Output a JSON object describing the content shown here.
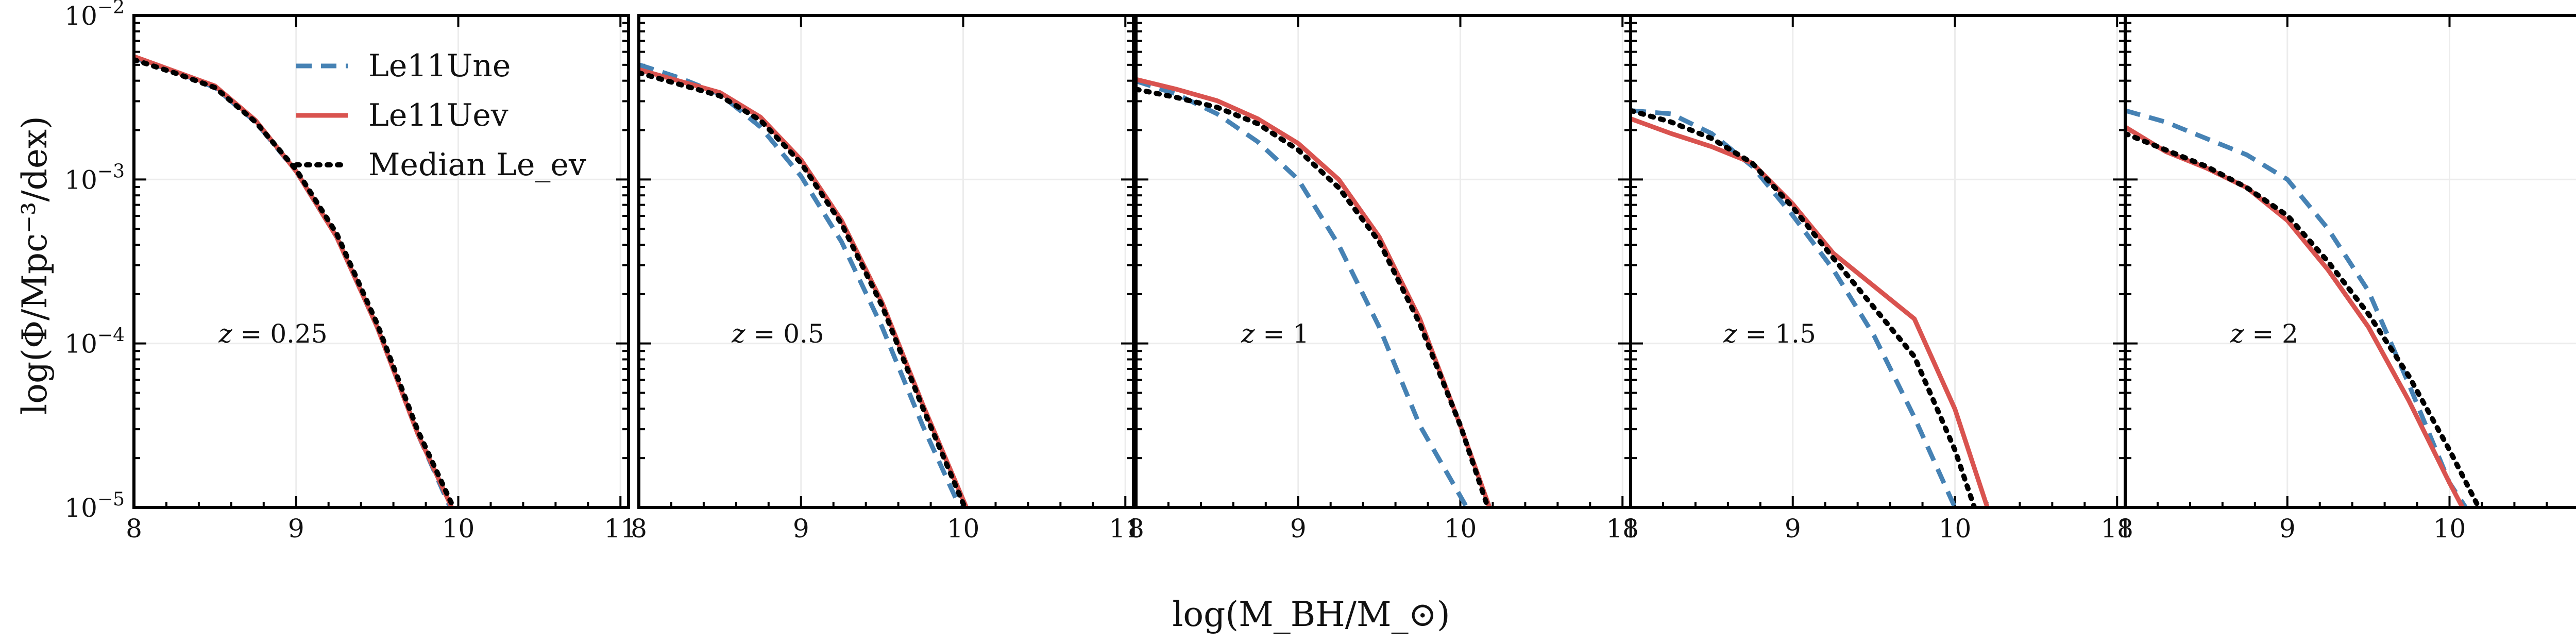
{
  "chart_data": {
    "type": "line",
    "xlabel": "log(M_BH/M_⊙)",
    "ylabel": "log(Φ/Mpc⁻³/dex)",
    "xlim": [
      8,
      11.05
    ],
    "ylim": [
      -5,
      -2
    ],
    "yscale": "log",
    "xticks": [
      "8",
      "9",
      "10",
      "11"
    ],
    "yticks": [
      {
        "base": "10",
        "exp": "−2",
        "value": -2
      },
      {
        "base": "10",
        "exp": "−3",
        "value": -3
      },
      {
        "base": "10",
        "exp": "−4",
        "value": -4
      },
      {
        "base": "10",
        "exp": "−5",
        "value": -5
      }
    ],
    "grid": true,
    "legend": {
      "placement": "top-left of first panel",
      "entries": [
        {
          "label": "Le11Une",
          "color": "#4682b4",
          "style": "dashed"
        },
        {
          "label": "Le11Uev",
          "color": "#d9534f",
          "style": "solid"
        },
        {
          "label": "Median Le_ev",
          "color": "#000000",
          "style": "dotted"
        }
      ]
    },
    "panels": [
      {
        "label": "z = 0.25",
        "z_value": "0.25",
        "series": [
          {
            "name": "Le11Une",
            "style": "dashed",
            "color": "#4682b4",
            "x": [
              8.0,
              8.25,
              8.5,
              8.75,
              9.0,
              9.25,
              9.5,
              9.75,
              9.95
            ],
            "y": [
              -2.26,
              -2.34,
              -2.44,
              -2.65,
              -2.95,
              -3.35,
              -3.9,
              -4.55,
              -5.0
            ]
          },
          {
            "name": "Le11Uev",
            "style": "solid",
            "color": "#d9534f",
            "x": [
              8.0,
              8.25,
              8.5,
              8.75,
              9.0,
              9.25,
              9.5,
              9.75,
              9.96
            ],
            "y": [
              -2.25,
              -2.34,
              -2.43,
              -2.64,
              -2.95,
              -3.35,
              -3.9,
              -4.55,
              -5.0
            ]
          },
          {
            "name": "Median Le_ev",
            "style": "dotted",
            "color": "#000000",
            "x": [
              8.0,
              8.25,
              8.5,
              8.75,
              9.0,
              9.25,
              9.5,
              9.75,
              9.97
            ],
            "y": [
              -2.27,
              -2.35,
              -2.44,
              -2.65,
              -2.94,
              -3.33,
              -3.88,
              -4.53,
              -5.0
            ]
          }
        ]
      },
      {
        "label": "z = 0.5",
        "z_value": "0.5",
        "series": [
          {
            "name": "Le11Une",
            "style": "dashed",
            "color": "#4682b4",
            "x": [
              8.0,
              8.25,
              8.5,
              8.75,
              9.0,
              9.25,
              9.5,
              9.75,
              9.98
            ],
            "y": [
              -2.3,
              -2.38,
              -2.48,
              -2.68,
              -2.98,
              -3.38,
              -3.9,
              -4.5,
              -5.0
            ]
          },
          {
            "name": "Le11Uev",
            "style": "solid",
            "color": "#d9534f",
            "x": [
              8.0,
              8.25,
              8.5,
              8.75,
              9.0,
              9.25,
              9.5,
              9.75,
              10.02
            ],
            "y": [
              -2.33,
              -2.4,
              -2.47,
              -2.62,
              -2.88,
              -3.25,
              -3.75,
              -4.37,
              -5.0
            ]
          },
          {
            "name": "Median Le_ev",
            "style": "dotted",
            "color": "#000000",
            "x": [
              8.0,
              8.25,
              8.5,
              8.75,
              9.0,
              9.25,
              9.5,
              9.75,
              10.01
            ],
            "y": [
              -2.35,
              -2.42,
              -2.49,
              -2.64,
              -2.9,
              -3.27,
              -3.77,
              -4.39,
              -5.0
            ]
          }
        ]
      },
      {
        "label": "z = 1",
        "z_value": "1",
        "series": [
          {
            "name": "Le11Une",
            "style": "dashed",
            "color": "#4682b4",
            "x": [
              8.0,
              8.25,
              8.5,
              8.75,
              9.0,
              9.25,
              9.5,
              9.75,
              10.04
            ],
            "y": [
              -2.4,
              -2.48,
              -2.6,
              -2.77,
              -3.0,
              -3.4,
              -3.9,
              -4.5,
              -5.0
            ]
          },
          {
            "name": "Le11Uev",
            "style": "solid",
            "color": "#d9534f",
            "x": [
              8.0,
              8.25,
              8.5,
              8.75,
              9.0,
              9.25,
              9.5,
              9.75,
              10.0,
              10.18
            ],
            "y": [
              -2.39,
              -2.45,
              -2.52,
              -2.63,
              -2.78,
              -3.0,
              -3.35,
              -3.85,
              -4.5,
              -5.0
            ]
          },
          {
            "name": "Median Le_ev",
            "style": "dotted",
            "color": "#000000",
            "x": [
              8.0,
              8.25,
              8.5,
              8.75,
              9.0,
              9.25,
              9.5,
              9.75,
              10.0,
              10.17
            ],
            "y": [
              -2.45,
              -2.5,
              -2.56,
              -2.66,
              -2.82,
              -3.05,
              -3.38,
              -3.88,
              -4.5,
              -5.0
            ]
          }
        ]
      },
      {
        "label": "z = 1.5",
        "z_value": "1.5",
        "series": [
          {
            "name": "Le11Une",
            "style": "dashed",
            "color": "#4682b4",
            "x": [
              8.0,
              8.25,
              8.5,
              8.75,
              9.0,
              9.25,
              9.5,
              9.75,
              10.0
            ],
            "y": [
              -2.58,
              -2.6,
              -2.72,
              -2.92,
              -3.22,
              -3.55,
              -3.95,
              -4.45,
              -5.0
            ]
          },
          {
            "name": "Le11Uev",
            "style": "solid",
            "color": "#d9534f",
            "x": [
              8.0,
              8.25,
              8.5,
              8.75,
              9.0,
              9.25,
              9.5,
              9.75,
              10.0,
              10.2
            ],
            "y": [
              -2.63,
              -2.72,
              -2.8,
              -2.9,
              -3.15,
              -3.45,
              -3.65,
              -3.85,
              -4.4,
              -5.0
            ]
          },
          {
            "name": "Median Le_ev",
            "style": "dotted",
            "color": "#000000",
            "x": [
              8.0,
              8.25,
              8.5,
              8.75,
              9.0,
              9.25,
              9.5,
              9.75,
              10.0,
              10.12
            ],
            "y": [
              -2.58,
              -2.65,
              -2.75,
              -2.9,
              -3.17,
              -3.48,
              -3.78,
              -4.08,
              -4.65,
              -5.0
            ]
          }
        ]
      },
      {
        "label": "z = 2",
        "z_value": "2",
        "series": [
          {
            "name": "Le11Une",
            "style": "dashed",
            "color": "#4682b4",
            "x": [
              8.0,
              8.25,
              8.5,
              8.75,
              9.0,
              9.25,
              9.5,
              9.75,
              10.0,
              10.1
            ],
            "y": [
              -2.58,
              -2.65,
              -2.75,
              -2.85,
              -3.0,
              -3.3,
              -3.68,
              -4.25,
              -4.85,
              -5.0
            ]
          },
          {
            "name": "Le11Uev",
            "style": "solid",
            "color": "#d9534f",
            "x": [
              8.0,
              8.25,
              8.5,
              8.75,
              9.0,
              9.25,
              9.5,
              9.75,
              10.0,
              10.08
            ],
            "y": [
              -2.68,
              -2.83,
              -2.93,
              -3.05,
              -3.25,
              -3.55,
              -3.9,
              -4.35,
              -4.85,
              -5.0
            ]
          },
          {
            "name": "Median Le_ev",
            "style": "dotted",
            "color": "#000000",
            "x": [
              8.0,
              8.25,
              8.5,
              8.75,
              9.0,
              9.25,
              9.5,
              9.75,
              10.0,
              10.18
            ],
            "y": [
              -2.72,
              -2.82,
              -2.92,
              -3.05,
              -3.22,
              -3.5,
              -3.82,
              -4.2,
              -4.65,
              -5.0
            ]
          }
        ]
      }
    ]
  }
}
